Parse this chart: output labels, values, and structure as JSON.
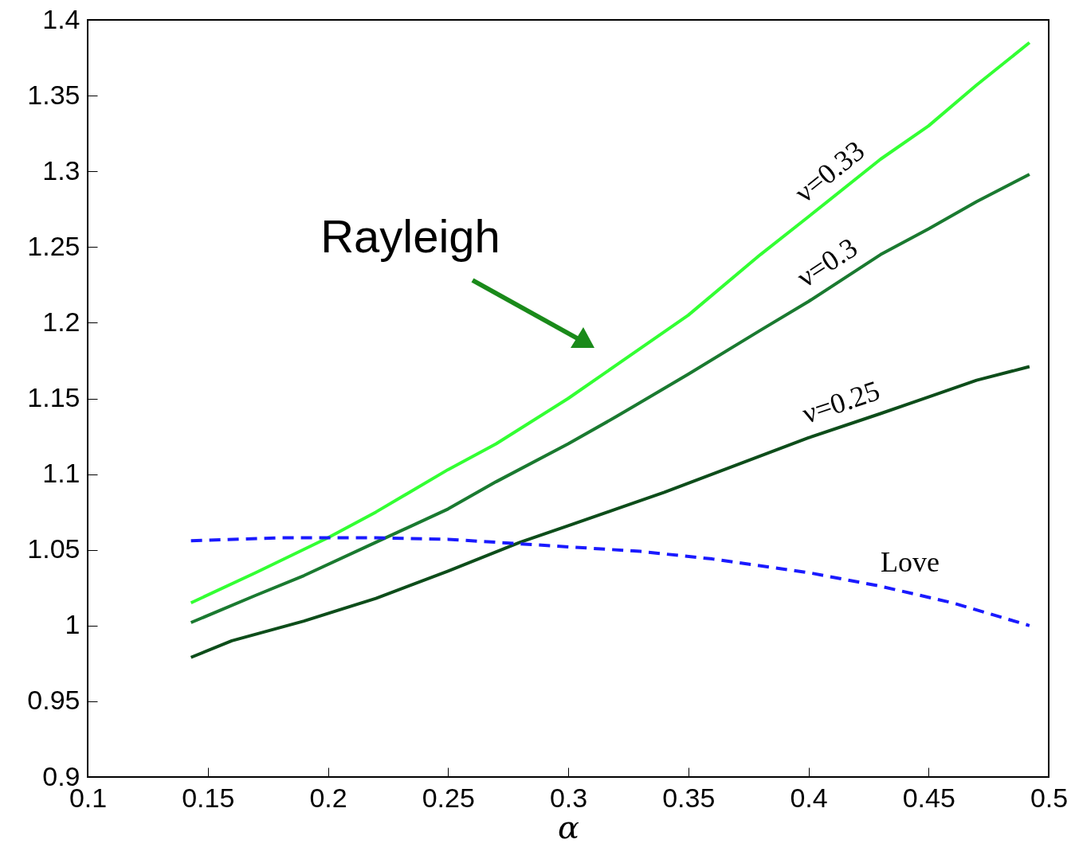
{
  "chart_data": {
    "type": "line",
    "xlabel": "α",
    "xlim": [
      0.1,
      0.5
    ],
    "xticks": [
      0.1,
      0.15,
      0.2,
      0.25,
      0.3,
      0.35,
      0.4,
      0.45,
      0.5
    ],
    "ylim": [
      0.9,
      1.4
    ],
    "yticks": [
      0.9,
      0.95,
      1,
      1.05,
      1.1,
      1.15,
      1.2,
      1.25,
      1.3,
      1.35,
      1.4
    ],
    "grid": false,
    "legend": false,
    "annotations": [
      "Rayleigh"
    ],
    "series": [
      {
        "name": "ν=0.33",
        "color": "#33ff33",
        "line_style": "solid",
        "x": [
          0.143,
          0.17,
          0.2,
          0.22,
          0.25,
          0.27,
          0.3,
          0.32,
          0.35,
          0.38,
          0.4,
          0.43,
          0.45,
          0.47,
          0.492
        ],
        "values": [
          1.015,
          1.035,
          1.058,
          1.075,
          1.103,
          1.12,
          1.15,
          1.172,
          1.205,
          1.245,
          1.27,
          1.308,
          1.33,
          1.357,
          1.385
        ]
      },
      {
        "name": "ν=0.3",
        "color": "#1a7a30",
        "line_style": "solid",
        "x": [
          0.143,
          0.17,
          0.19,
          0.22,
          0.25,
          0.27,
          0.3,
          0.32,
          0.35,
          0.38,
          0.4,
          0.43,
          0.45,
          0.47,
          0.492
        ],
        "values": [
          1.002,
          1.02,
          1.033,
          1.055,
          1.077,
          1.095,
          1.12,
          1.138,
          1.166,
          1.195,
          1.214,
          1.245,
          1.262,
          1.28,
          1.298
        ]
      },
      {
        "name": "ν=0.25",
        "color": "#0d4d1a",
        "line_style": "solid",
        "x": [
          0.143,
          0.16,
          0.19,
          0.22,
          0.25,
          0.28,
          0.3,
          0.32,
          0.34,
          0.37,
          0.4,
          0.43,
          0.45,
          0.47,
          0.492
        ],
        "values": [
          0.979,
          0.99,
          1.003,
          1.018,
          1.036,
          1.055,
          1.066,
          1.077,
          1.088,
          1.106,
          1.124,
          1.14,
          1.151,
          1.162,
          1.171
        ]
      },
      {
        "name": "Love",
        "color": "#1a1aff",
        "line_style": "dashed",
        "x": [
          0.143,
          0.18,
          0.22,
          0.25,
          0.28,
          0.3,
          0.33,
          0.36,
          0.4,
          0.43,
          0.46,
          0.492
        ],
        "values": [
          1.056,
          1.058,
          1.058,
          1.057,
          1.054,
          1.052,
          1.049,
          1.044,
          1.035,
          1.026,
          1.015,
          1.0
        ]
      }
    ]
  }
}
